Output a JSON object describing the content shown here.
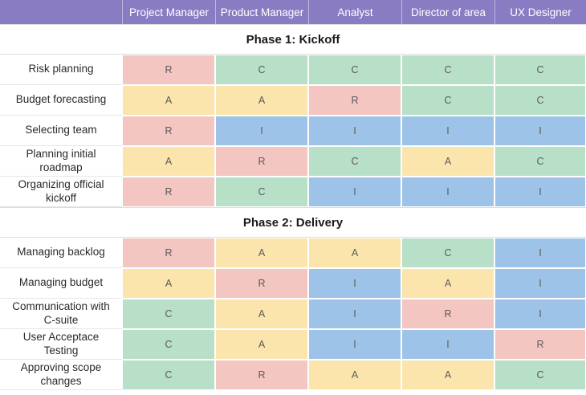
{
  "chart_data": {
    "type": "table",
    "columns": [
      "Project Manager",
      "Product Manager",
      "Analyst",
      "Director of area",
      "UX Designer"
    ],
    "sections": [
      {
        "title": "Phase 1: Kickoff",
        "rows": [
          {
            "label": "Risk planning",
            "values": [
              "R",
              "C",
              "C",
              "C",
              "C"
            ]
          },
          {
            "label": "Budget forecasting",
            "values": [
              "A",
              "A",
              "R",
              "C",
              "C"
            ]
          },
          {
            "label": "Selecting team",
            "values": [
              "R",
              "I",
              "I",
              "I",
              "I"
            ]
          },
          {
            "label": "Planning initial roadmap",
            "values": [
              "A",
              "R",
              "C",
              "A",
              "C"
            ]
          },
          {
            "label": "Organizing official kickoff",
            "values": [
              "R",
              "C",
              "I",
              "I",
              "I"
            ]
          }
        ]
      },
      {
        "title": "Phase 2: Delivery",
        "rows": [
          {
            "label": "Managing backlog",
            "values": [
              "R",
              "A",
              "A",
              "C",
              "I"
            ]
          },
          {
            "label": "Managing budget",
            "values": [
              "A",
              "R",
              "I",
              "A",
              "I"
            ]
          },
          {
            "label": "Communication with C-suite",
            "values": [
              "C",
              "A",
              "I",
              "R",
              "I"
            ]
          },
          {
            "label": "User Acceptace Testing",
            "values": [
              "C",
              "A",
              "I",
              "I",
              "R"
            ]
          },
          {
            "label": "Approving scope changes",
            "values": [
              "C",
              "R",
              "A",
              "A",
              "C"
            ]
          }
        ]
      }
    ],
    "palette": {
      "R": "#f3c6c2",
      "A": "#fbe5ad",
      "C": "#b8dfc8",
      "I": "#9dc4e8",
      "header_bg": "#8a7cc3",
      "header_text": "#ffffff",
      "letter_text": "#5b5b5b",
      "label_text": "#2a2a2a",
      "grid_line": "#dddddd"
    }
  }
}
